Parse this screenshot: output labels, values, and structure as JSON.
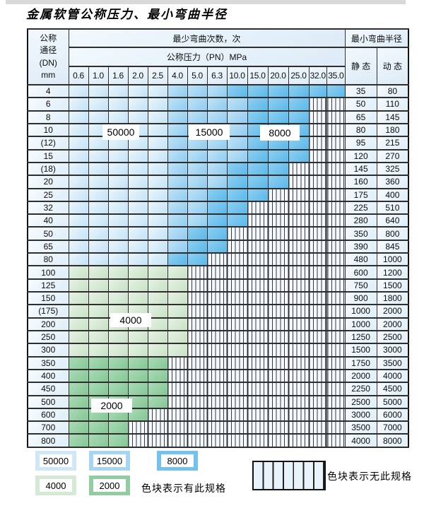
{
  "title": "金属软管公称压力、最小弯曲半径",
  "table": {
    "dn_header_lines": [
      "公称",
      "通径",
      "(DN)",
      "mm"
    ],
    "cycles_header": "最少弯曲次数，次",
    "pressure_header": "公称压力（PN）MPa",
    "pressure_ticks": [
      "0.6",
      "1.0",
      "1.6",
      "2.0",
      "2.5",
      "4.0",
      "5.0",
      "6.3",
      "10.0",
      "15.0",
      "20.0",
      "25.0",
      "32.0",
      "35.0"
    ],
    "radius_header": "最小弯曲半径",
    "static_header": "静 态",
    "dynamic_header": "动 态",
    "cycle_code_map": {
      "A": "50000",
      "B": "15000",
      "C": "8000",
      "D": "4000",
      "E": "2000",
      "X": "none"
    },
    "rows": [
      {
        "dn": "4",
        "cells": "AAAAABBBCCCCCC",
        "static": "35",
        "dynamic": "80"
      },
      {
        "dn": "6",
        "cells": "AAAAABBBBCCCXX",
        "static": "50",
        "dynamic": "110"
      },
      {
        "dn": "8",
        "cells": "AAAAABBBBCCCXX",
        "static": "65",
        "dynamic": "145"
      },
      {
        "dn": "10",
        "cells": "AAAAABBBBCCCXX",
        "static": "80",
        "dynamic": "180"
      },
      {
        "dn": "(12)",
        "cells": "AAAAABBBBCCCXX",
        "static": "95",
        "dynamic": "215"
      },
      {
        "dn": "15",
        "cells": "AAAAABBBBCCCXX",
        "static": "120",
        "dynamic": "270"
      },
      {
        "dn": "(18)",
        "cells": "AAAAABBBCCCXXX",
        "static": "145",
        "dynamic": "325"
      },
      {
        "dn": "20",
        "cells": "AAAAABBBCCCXXX",
        "static": "160",
        "dynamic": "360"
      },
      {
        "dn": "25",
        "cells": "AAAAABBCCCXXXX",
        "static": "175",
        "dynamic": "400"
      },
      {
        "dn": "32",
        "cells": "AAAAABBCCXXXXX",
        "static": "225",
        "dynamic": "510"
      },
      {
        "dn": "40",
        "cells": "AAAAABBCCXXXXX",
        "static": "280",
        "dynamic": "640"
      },
      {
        "dn": "50",
        "cells": "AAAAABCCXXXXXX",
        "static": "350",
        "dynamic": "800"
      },
      {
        "dn": "65",
        "cells": "AAAAABCCXXXXXX",
        "static": "390",
        "dynamic": "845"
      },
      {
        "dn": "80",
        "cells": "AAAAACCXXXXXXX",
        "static": "480",
        "dynamic": "1000"
      },
      {
        "dn": "100",
        "cells": "DDDDDDXXXXXXXX",
        "static": "600",
        "dynamic": "1200"
      },
      {
        "dn": "125",
        "cells": "DDDDDDXXXXXXXX",
        "static": "750",
        "dynamic": "1500"
      },
      {
        "dn": "150",
        "cells": "DDDDDDXXXXXXXX",
        "static": "900",
        "dynamic": "1800"
      },
      {
        "dn": "(175)",
        "cells": "DDDDDDXXXXXXXX",
        "static": "1000",
        "dynamic": "2000"
      },
      {
        "dn": "200",
        "cells": "DDDDDDXXXXXXXX",
        "static": "1000",
        "dynamic": "2000"
      },
      {
        "dn": "250",
        "cells": "DDDDDDXXXXXXXX",
        "static": "1250",
        "dynamic": "2500"
      },
      {
        "dn": "300",
        "cells": "DDDDDDXXXXXXXX",
        "static": "1500",
        "dynamic": "3000"
      },
      {
        "dn": "350",
        "cells": "EEEEEXXXXXXXXX",
        "static": "1750",
        "dynamic": "3500"
      },
      {
        "dn": "400",
        "cells": "EEEEEXXXXXXXXX",
        "static": "2000",
        "dynamic": "4000"
      },
      {
        "dn": "450",
        "cells": "EEEEEXXXXXXXXX",
        "static": "2250",
        "dynamic": "4500"
      },
      {
        "dn": "500",
        "cells": "EEEEEXXXXXXXXX",
        "static": "2500",
        "dynamic": "5000"
      },
      {
        "dn": "600",
        "cells": "EEEEXXXXXXXXXX",
        "static": "3000",
        "dynamic": "6000"
      },
      {
        "dn": "700",
        "cells": "EEEXXXXXXXXXXX",
        "static": "3500",
        "dynamic": "7000"
      },
      {
        "dn": "800",
        "cells": "EEEXXXXXXXXXXX",
        "static": "4000",
        "dynamic": "8000"
      }
    ]
  },
  "overlay_labels": [
    "50000",
    "15000",
    "8000",
    "4000",
    "2000"
  ],
  "legend": {
    "has_spec": [
      {
        "value": "50000",
        "color": "#cfe7f7"
      },
      {
        "value": "15000",
        "color": "#a5d5f2"
      },
      {
        "value": "8000",
        "color": "#72c2ed"
      },
      {
        "value": "4000",
        "color": "#d5e9d4"
      },
      {
        "value": "2000",
        "color": "#92cda1"
      }
    ],
    "has_spec_text": "色块表示有此规格",
    "no_spec_text": "色块表示无此规格"
  }
}
